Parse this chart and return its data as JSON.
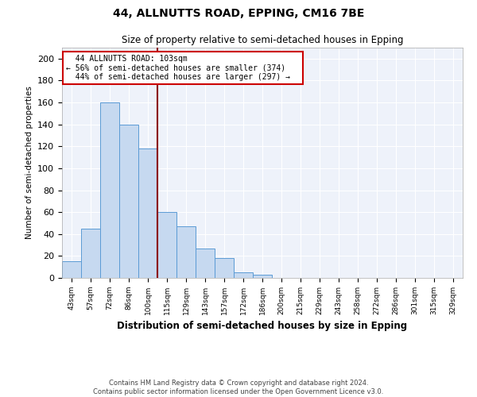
{
  "title1": "44, ALLNUTTS ROAD, EPPING, CM16 7BE",
  "title2": "Size of property relative to semi-detached houses in Epping",
  "xlabel": "Distribution of semi-detached houses by size in Epping",
  "ylabel": "Number of semi-detached properties",
  "footnote1": "Contains HM Land Registry data © Crown copyright and database right 2024.",
  "footnote2": "Contains public sector information licensed under the Open Government Licence v3.0.",
  "annotation_line1": "44 ALLNUTTS ROAD: 103sqm",
  "annotation_line2": "← 56% of semi-detached houses are smaller (374)",
  "annotation_line3": "44% of semi-detached houses are larger (297) →",
  "bar_labels": [
    "43sqm",
    "57sqm",
    "72sqm",
    "86sqm",
    "100sqm",
    "115sqm",
    "129sqm",
    "143sqm",
    "157sqm",
    "172sqm",
    "186sqm",
    "200sqm",
    "215sqm",
    "229sqm",
    "243sqm",
    "258sqm",
    "272sqm",
    "286sqm",
    "301sqm",
    "315sqm",
    "329sqm"
  ],
  "bar_values": [
    15,
    45,
    160,
    140,
    118,
    60,
    47,
    27,
    18,
    5,
    3,
    0,
    0,
    0,
    0,
    0,
    0,
    0,
    0,
    0,
    0
  ],
  "bar_color": "#c6d9f0",
  "bar_edge_color": "#5b9bd5",
  "vline_x_index": 4,
  "vline_color": "#8b0000",
  "annotation_box_edge_color": "#cc0000",
  "background_color": "#eef2fa",
  "ylim": [
    0,
    210
  ],
  "yticks": [
    0,
    20,
    40,
    60,
    80,
    100,
    120,
    140,
    160,
    180,
    200
  ],
  "grid_color": "#ffffff",
  "figsize": [
    6.0,
    5.0
  ],
  "dpi": 100
}
